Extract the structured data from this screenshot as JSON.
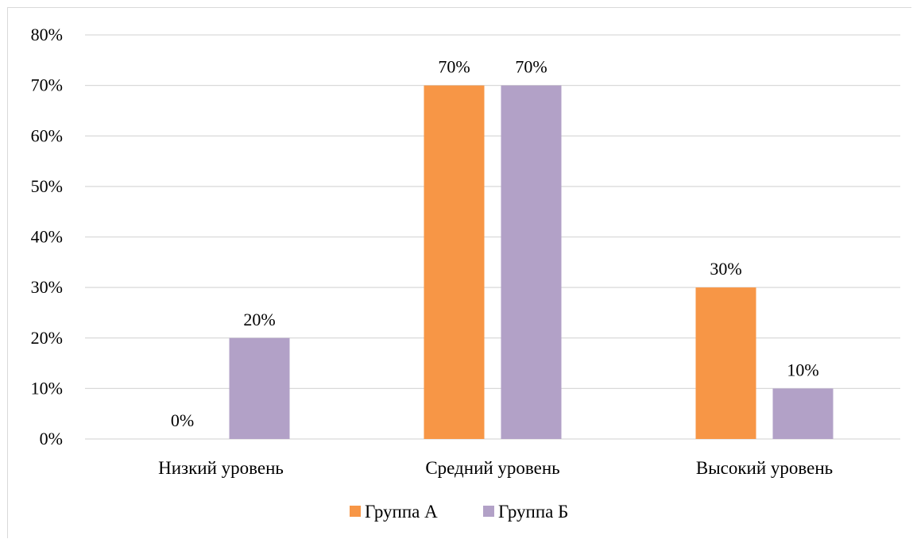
{
  "chart_data": {
    "type": "bar",
    "categories": [
      "Низкий уровень",
      "Средний уровень",
      "Высокий уровень"
    ],
    "series": [
      {
        "name": "Группа А",
        "values": [
          0,
          70,
          30
        ],
        "labels": [
          "0%",
          "70%",
          "30%"
        ],
        "color": "#f79646"
      },
      {
        "name": "Группа Б",
        "values": [
          20,
          70,
          10
        ],
        "labels": [
          "20%",
          "70%",
          "10%"
        ],
        "color": "#b2a1c7"
      }
    ],
    "yticks": [
      "0%",
      "10%",
      "20%",
      "30%",
      "40%",
      "50%",
      "60%",
      "70%",
      "80%"
    ],
    "ylim": [
      0,
      80
    ],
    "unit": "%",
    "grid": true,
    "gridColor": "#d9d9d9",
    "legendPosition": "bottom",
    "title": "",
    "xlabel": "",
    "ylabel": ""
  }
}
